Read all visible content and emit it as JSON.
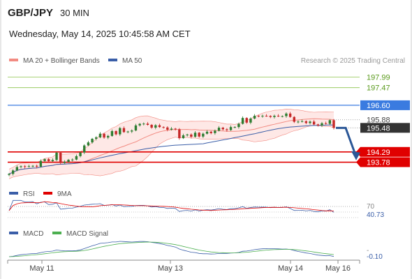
{
  "header": {
    "symbol": "GBP/JPY",
    "timeframe": "30 MIN",
    "datetime": "Wednesday, May 14, 2025 10:45:58 AM CET"
  },
  "legend_main": {
    "bb_label": "MA 20 + Bollinger Bands",
    "ma50_label": "MA 50",
    "copyright": "Research © 2025 Trading Central"
  },
  "legend_rsi": {
    "rsi_label": "RSI",
    "ma_label": "9MA"
  },
  "legend_macd": {
    "macd_label": "MACD",
    "signal_label": "MACD Signal"
  },
  "colors": {
    "bb": "#f28b82",
    "bb_fill": "#fde0dd",
    "ma50": "#3a5ea8",
    "support": "#e00000",
    "resistance": "#3a7be0",
    "target": "#8bc34a",
    "candle_up": "#2e7d32",
    "candle_down": "#c62828",
    "arrow": "#2b5797",
    "macd_signal": "#4caf50"
  },
  "chart_data": [
    {
      "type": "candlestick",
      "name": "price",
      "y_range": [
        192.9,
        198.6
      ],
      "x_ticks": [
        "May 11",
        "May 13",
        "May 14",
        "May 16"
      ],
      "close": [
        193.2,
        193.37,
        193.54,
        193.58,
        193.55,
        193.58,
        193.6,
        193.56,
        193.84,
        193.93,
        193.83,
        193.89,
        194.25,
        193.74,
        193.8,
        193.9,
        193.91,
        194.08,
        194.26,
        194.61,
        194.76,
        194.94,
        195.01,
        195.19,
        195.0,
        195.08,
        195.32,
        195.16,
        195.47,
        195.27,
        195.3,
        195.35,
        195.6,
        195.68,
        195.69,
        195.63,
        195.49,
        195.61,
        195.52,
        195.5,
        195.39,
        195.44,
        195.41,
        194.97,
        195.11,
        195.15,
        195.04,
        195.24,
        195.05,
        195.19,
        195.29,
        195.22,
        195.34,
        195.49,
        195.41,
        195.37,
        195.52,
        195.52,
        195.68,
        195.97,
        195.74,
        195.94,
        196.08,
        196.06,
        196.08,
        196.07,
        196.02,
        196.08,
        196.06,
        196.06,
        196.19,
        196.02,
        195.78,
        195.79,
        195.81,
        195.72,
        195.79,
        195.65,
        195.6,
        195.71,
        195.68,
        195.86,
        195.48
      ],
      "levels": [
        {
          "label": "197.99",
          "value": 197.99,
          "kind": "target"
        },
        {
          "label": "197.47",
          "value": 197.47,
          "kind": "target"
        },
        {
          "label": "196.60",
          "value": 196.6,
          "kind": "resistance"
        },
        {
          "label": "195.88",
          "value": 195.88,
          "kind": "marker"
        },
        {
          "label": "195.48",
          "value": 195.48,
          "kind": "last"
        },
        {
          "label": "194.29",
          "value": 194.29,
          "kind": "support"
        },
        {
          "label": "193.78",
          "value": 193.78,
          "kind": "support"
        }
      ]
    },
    {
      "type": "line",
      "name": "RSI",
      "series": [
        "RSI",
        "9MA"
      ],
      "level_label": "70",
      "last_label": "40.73"
    },
    {
      "type": "line",
      "name": "MACD",
      "series": [
        "MACD",
        "MACD Signal"
      ],
      "last_label": "-0.10",
      "tick_label": "-"
    }
  ]
}
